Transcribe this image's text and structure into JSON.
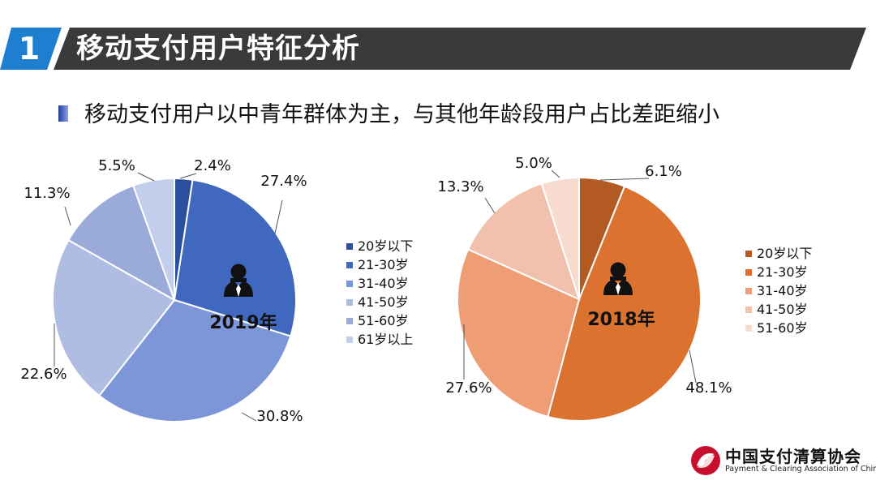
{
  "header": {
    "number": "1",
    "title": "移动支付用户特征分析"
  },
  "subtitle": "移动支付用户以中青年群体为主，与其他年龄段用户占比差距缩小",
  "chart_data": [
    {
      "type": "pie",
      "title": "2019年",
      "categories": [
        "20岁以下",
        "21-30岁",
        "31-40岁",
        "41-50岁",
        "51-60岁",
        "61岁以上"
      ],
      "values": [
        2.4,
        27.4,
        30.8,
        22.6,
        11.3,
        5.5
      ],
      "labels": [
        "2.4%",
        "27.4%",
        "30.8%",
        "22.6%",
        "11.3%",
        "5.5%"
      ],
      "colors": [
        "#2b4f9c",
        "#4068be",
        "#7c96d8",
        "#b0bde3",
        "#9aaad9",
        "#c3cdec"
      ],
      "legend_position": "right"
    },
    {
      "type": "pie",
      "title": "2018年",
      "categories": [
        "20岁以下",
        "21-30岁",
        "31-40岁",
        "41-50岁",
        "51-60岁"
      ],
      "values": [
        6.1,
        48.1,
        27.6,
        13.3,
        5.0
      ],
      "labels": [
        "6.1%",
        "48.1%",
        "27.6%",
        "13.3%",
        "5.0%"
      ],
      "colors": [
        "#b25a22",
        "#dc7230",
        "#ee9d74",
        "#f2c1ae",
        "#f7dbcf"
      ],
      "legend_position": "right"
    }
  ],
  "logo": {
    "name_cn": "中国支付清算协会",
    "name_en": "Payment & Clearing Association of China"
  }
}
